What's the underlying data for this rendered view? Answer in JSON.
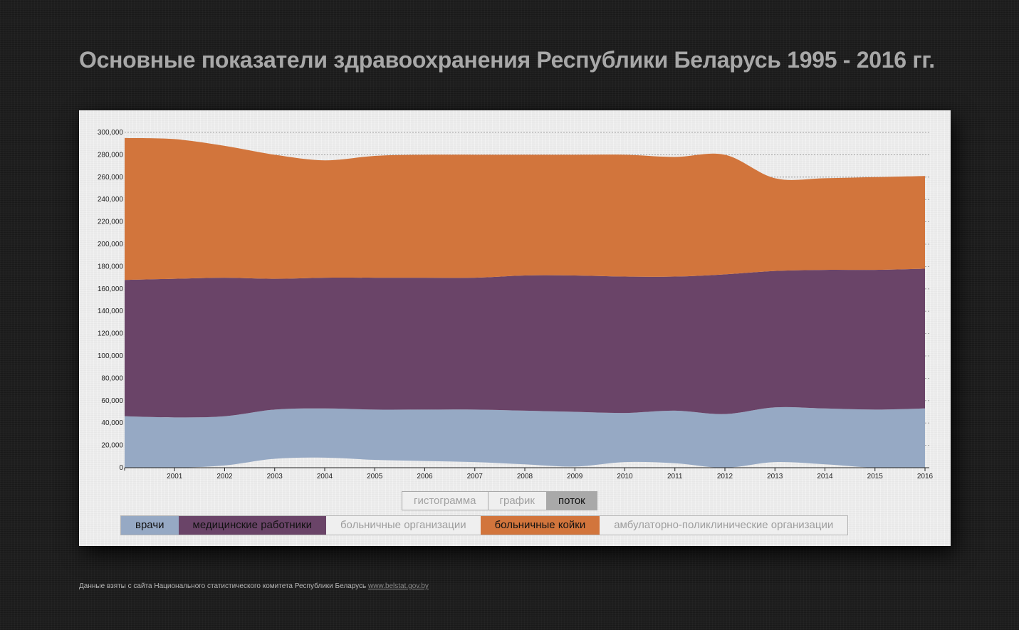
{
  "page": {
    "title": "Основные показатели здравоохранения Республики Беларусь 1995 - 2016 гг.",
    "footer_text": "Данные взяты с сайта Национального статистического комитета Республики Беларусь",
    "footer_link": "www.belstat.gov.by"
  },
  "modes": [
    {
      "label": "гистограмма",
      "active": false
    },
    {
      "label": "график",
      "active": false
    },
    {
      "label": "поток",
      "active": true
    }
  ],
  "legend": [
    {
      "label": "врачи",
      "color": "#96a9c4",
      "on": true
    },
    {
      "label": "медицинские работники",
      "color": "#6a4468",
      "on": true
    },
    {
      "label": "больничные организации",
      "color": "#efefef",
      "on": false
    },
    {
      "label": "больничные койки",
      "color": "#d2753c",
      "on": true
    },
    {
      "label": "амбулаторно-поликлинические организации",
      "color": "#efefef",
      "on": false
    }
  ],
  "chart_data": {
    "type": "area",
    "stacked": true,
    "x": [
      2000,
      2001,
      2002,
      2003,
      2004,
      2005,
      2006,
      2007,
      2008,
      2009,
      2010,
      2011,
      2012,
      2013,
      2014,
      2015,
      2016
    ],
    "x_ticks": [
      "2001",
      "2002",
      "2003",
      "2004",
      "2005",
      "2006",
      "2007",
      "2008",
      "2009",
      "2010",
      "2011",
      "2012",
      "2013",
      "2014",
      "2015",
      "2016"
    ],
    "ylim": [
      0,
      300000
    ],
    "y_ticks": [
      "0",
      "20,000",
      "40,000",
      "60,000",
      "80,000",
      "100,000",
      "120,000",
      "140,000",
      "160,000",
      "180,000",
      "200,000",
      "220,000",
      "240,000",
      "260,000",
      "280,000",
      "300,000"
    ],
    "grid": "horizontal-dashed",
    "baseline": [
      0,
      0,
      2000,
      8000,
      9000,
      7000,
      6000,
      5000,
      3000,
      1000,
      5000,
      4000,
      0,
      5000,
      3000,
      0,
      0
    ],
    "series": [
      {
        "name": "врачи",
        "color": "#96a9c4",
        "values": [
          46000,
          45000,
          44000,
          44000,
          44000,
          45000,
          46000,
          47000,
          48000,
          49000,
          44000,
          47000,
          48000,
          49000,
          50000,
          52000,
          53000
        ]
      },
      {
        "name": "медицинские работники",
        "color": "#6a4468",
        "values": [
          122000,
          124000,
          124000,
          117000,
          117000,
          118000,
          118000,
          118000,
          121000,
          122000,
          122000,
          120000,
          125000,
          122000,
          124000,
          125000,
          125000
        ]
      },
      {
        "name": "больничные койки",
        "color": "#d2753c",
        "values": [
          127000,
          125000,
          118000,
          111000,
          105000,
          109000,
          110000,
          110000,
          108000,
          108000,
          109000,
          107000,
          107000,
          83000,
          82000,
          83000,
          83000
        ]
      }
    ]
  }
}
